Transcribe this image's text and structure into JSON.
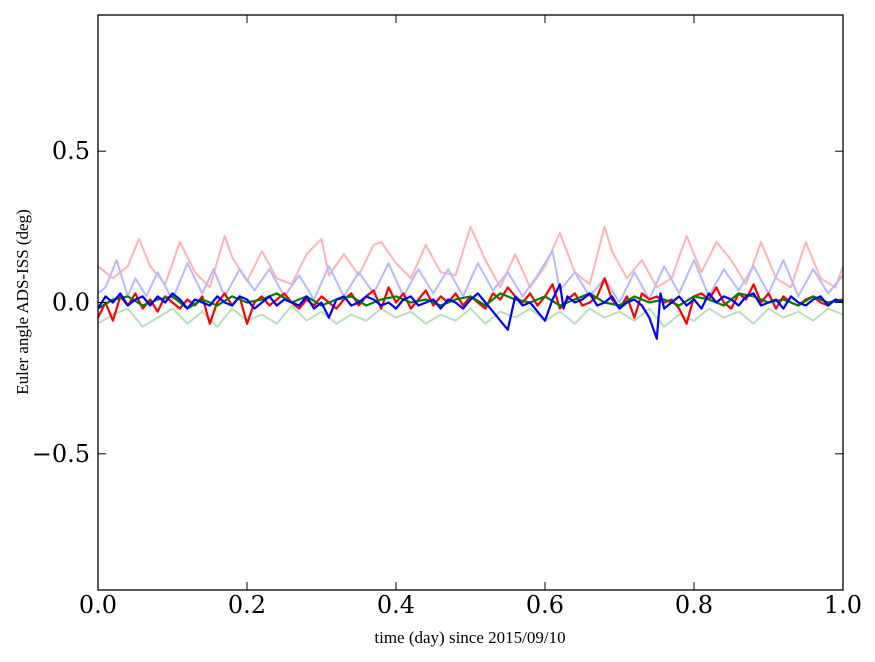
{
  "chart_data": {
    "type": "line",
    "title": "",
    "xlabel": "time (day) since 2015/09/10",
    "ylabel": "Euler angle ADS-ISS (deg)",
    "xlim": [
      0.0,
      1.0
    ],
    "ylim": [
      -0.95,
      0.95
    ],
    "xticks": [
      0.0,
      0.2,
      0.4,
      0.6,
      0.8,
      1.0
    ],
    "xtick_labels": [
      "0.0",
      "0.2",
      "0.4",
      "0.6",
      "0.8",
      "1.0"
    ],
    "yticks": [
      -0.5,
      0.0,
      0.5
    ],
    "ytick_labels": [
      "−0.5",
      "0.0",
      "0.5"
    ],
    "grid": false,
    "legend": "none",
    "series": [
      {
        "color": "#ffb3b3",
        "x": [
          0.0,
          0.02,
          0.04,
          0.055,
          0.07,
          0.09,
          0.11,
          0.13,
          0.15,
          0.17,
          0.18,
          0.2,
          0.22,
          0.24,
          0.26,
          0.28,
          0.3,
          0.31,
          0.33,
          0.35,
          0.37,
          0.38,
          0.4,
          0.42,
          0.44,
          0.46,
          0.48,
          0.5,
          0.52,
          0.54,
          0.56,
          0.58,
          0.6,
          0.62,
          0.64,
          0.66,
          0.68,
          0.69,
          0.71,
          0.73,
          0.75,
          0.77,
          0.79,
          0.81,
          0.83,
          0.85,
          0.87,
          0.89,
          0.91,
          0.93,
          0.95,
          0.97,
          0.99,
          1.0
        ],
        "y": [
          0.12,
          0.08,
          0.12,
          0.21,
          0.12,
          0.06,
          0.2,
          0.1,
          0.05,
          0.22,
          0.15,
          0.07,
          0.17,
          0.08,
          0.06,
          0.16,
          0.21,
          0.09,
          0.16,
          0.09,
          0.19,
          0.2,
          0.13,
          0.08,
          0.19,
          0.1,
          0.09,
          0.25,
          0.14,
          0.05,
          0.16,
          0.05,
          0.12,
          0.23,
          0.1,
          0.06,
          0.25,
          0.17,
          0.08,
          0.14,
          0.05,
          0.08,
          0.22,
          0.1,
          0.2,
          0.14,
          0.06,
          0.2,
          0.08,
          0.05,
          0.2,
          0.08,
          0.05,
          0.12
        ]
      },
      {
        "color": "#b8b8ff",
        "x": [
          0.0,
          0.01,
          0.025,
          0.04,
          0.05,
          0.065,
          0.08,
          0.1,
          0.12,
          0.14,
          0.155,
          0.17,
          0.19,
          0.21,
          0.23,
          0.25,
          0.27,
          0.29,
          0.31,
          0.33,
          0.35,
          0.37,
          0.39,
          0.41,
          0.43,
          0.45,
          0.47,
          0.49,
          0.51,
          0.53,
          0.55,
          0.57,
          0.59,
          0.61,
          0.62,
          0.64,
          0.66,
          0.68,
          0.7,
          0.72,
          0.74,
          0.76,
          0.78,
          0.8,
          0.82,
          0.84,
          0.86,
          0.88,
          0.9,
          0.92,
          0.94,
          0.96,
          0.98,
          1.0
        ],
        "y": [
          0.03,
          0.05,
          0.14,
          0.02,
          0.08,
          0.02,
          0.1,
          0.01,
          0.13,
          0.03,
          0.11,
          0.02,
          0.11,
          0.04,
          0.11,
          0.02,
          0.09,
          0.01,
          0.12,
          0.02,
          0.1,
          0.03,
          0.13,
          0.02,
          0.11,
          0.03,
          0.11,
          0.02,
          0.13,
          0.04,
          0.1,
          0.02,
          0.09,
          0.17,
          0.04,
          0.1,
          0.02,
          0.08,
          0.0,
          0.1,
          0.01,
          0.12,
          0.03,
          0.14,
          0.02,
          0.11,
          0.04,
          0.12,
          0.03,
          0.14,
          0.02,
          0.11,
          0.03,
          0.09
        ]
      },
      {
        "color": "#b8e0b8",
        "x": [
          0.0,
          0.02,
          0.04,
          0.06,
          0.08,
          0.1,
          0.12,
          0.14,
          0.16,
          0.18,
          0.2,
          0.22,
          0.24,
          0.26,
          0.28,
          0.3,
          0.32,
          0.34,
          0.36,
          0.38,
          0.4,
          0.42,
          0.44,
          0.46,
          0.48,
          0.5,
          0.52,
          0.54,
          0.56,
          0.58,
          0.6,
          0.62,
          0.64,
          0.66,
          0.68,
          0.7,
          0.72,
          0.74,
          0.76,
          0.78,
          0.8,
          0.82,
          0.84,
          0.86,
          0.88,
          0.9,
          0.92,
          0.94,
          0.96,
          0.98,
          1.0
        ],
        "y": [
          -0.07,
          -0.04,
          -0.02,
          -0.08,
          -0.05,
          -0.02,
          -0.07,
          -0.03,
          -0.08,
          -0.02,
          -0.06,
          -0.04,
          -0.07,
          -0.01,
          -0.06,
          -0.03,
          -0.07,
          -0.04,
          -0.06,
          -0.02,
          -0.05,
          -0.03,
          -0.07,
          -0.04,
          -0.06,
          -0.02,
          -0.07,
          -0.03,
          -0.05,
          -0.02,
          -0.06,
          -0.03,
          -0.07,
          -0.02,
          -0.05,
          -0.03,
          -0.06,
          -0.02,
          -0.08,
          -0.04,
          -0.06,
          -0.02,
          -0.05,
          -0.03,
          -0.07,
          -0.02,
          -0.05,
          -0.03,
          -0.06,
          -0.02,
          -0.04
        ]
      },
      {
        "color": "#ff0000",
        "x": [
          0.0,
          0.01,
          0.02,
          0.03,
          0.04,
          0.05,
          0.06,
          0.07,
          0.08,
          0.09,
          0.1,
          0.11,
          0.12,
          0.13,
          0.14,
          0.15,
          0.16,
          0.17,
          0.18,
          0.19,
          0.2,
          0.21,
          0.22,
          0.23,
          0.24,
          0.25,
          0.26,
          0.27,
          0.28,
          0.29,
          0.3,
          0.31,
          0.32,
          0.33,
          0.34,
          0.35,
          0.36,
          0.37,
          0.38,
          0.39,
          0.4,
          0.41,
          0.42,
          0.43,
          0.44,
          0.45,
          0.46,
          0.47,
          0.48,
          0.49,
          0.5,
          0.51,
          0.52,
          0.53,
          0.54,
          0.55,
          0.56,
          0.57,
          0.58,
          0.59,
          0.6,
          0.61,
          0.62,
          0.63,
          0.64,
          0.65,
          0.66,
          0.67,
          0.68,
          0.69,
          0.7,
          0.71,
          0.72,
          0.73,
          0.74,
          0.75,
          0.76,
          0.77,
          0.78,
          0.79,
          0.8,
          0.81,
          0.82,
          0.83,
          0.84,
          0.85,
          0.86,
          0.87,
          0.88,
          0.89,
          0.9,
          0.91,
          0.92,
          0.93,
          0.94,
          0.95,
          0.96,
          0.97,
          0.98,
          0.99,
          1.0
        ],
        "y": [
          -0.05,
          0.0,
          -0.06,
          0.02,
          -0.01,
          0.03,
          -0.02,
          0.01,
          -0.03,
          0.02,
          0.0,
          -0.02,
          0.01,
          -0.01,
          0.02,
          -0.07,
          0.0,
          0.03,
          -0.01,
          0.02,
          -0.07,
          0.0,
          0.02,
          -0.01,
          0.01,
          0.03,
          0.0,
          -0.02,
          0.01,
          -0.01,
          0.02,
          0.0,
          -0.02,
          0.01,
          0.03,
          -0.01,
          0.02,
          0.04,
          -0.02,
          0.05,
          0.0,
          0.03,
          -0.02,
          0.01,
          0.04,
          -0.01,
          0.02,
          0.0,
          0.03,
          -0.01,
          0.02,
          0.0,
          -0.02,
          0.03,
          0.01,
          0.05,
          0.02,
          0.0,
          0.03,
          -0.01,
          0.02,
          0.06,
          -0.02,
          0.01,
          0.03,
          -0.01,
          0.0,
          0.02,
          0.08,
          0.01,
          -0.02,
          0.02,
          -0.05,
          0.03,
          0.01,
          0.02,
          0.0,
          0.01,
          -0.02,
          -0.07,
          0.02,
          0.03,
          0.01,
          0.05,
          0.0,
          -0.02,
          0.03,
          0.01,
          0.06,
          0.0,
          0.03,
          -0.02,
          0.02,
          0.0,
          -0.01,
          0.01,
          0.02,
          0.0,
          -0.01,
          0.01,
          0.0
        ]
      },
      {
        "color": "#008000",
        "x": [
          0.0,
          0.02,
          0.04,
          0.06,
          0.08,
          0.1,
          0.12,
          0.14,
          0.16,
          0.18,
          0.2,
          0.22,
          0.24,
          0.26,
          0.28,
          0.3,
          0.32,
          0.34,
          0.36,
          0.38,
          0.4,
          0.42,
          0.44,
          0.46,
          0.48,
          0.5,
          0.52,
          0.54,
          0.56,
          0.58,
          0.6,
          0.62,
          0.64,
          0.66,
          0.68,
          0.7,
          0.72,
          0.74,
          0.76,
          0.78,
          0.8,
          0.82,
          0.84,
          0.86,
          0.88,
          0.9,
          0.92,
          0.94,
          0.96,
          0.98,
          1.0
        ],
        "y": [
          -0.02,
          0.01,
          0.02,
          -0.01,
          0.01,
          0.02,
          -0.02,
          0.01,
          -0.01,
          0.02,
          0.0,
          0.01,
          0.03,
          0.0,
          0.02,
          -0.01,
          0.01,
          0.02,
          -0.01,
          0.01,
          0.02,
          0.0,
          0.01,
          -0.01,
          0.01,
          0.02,
          -0.01,
          0.03,
          0.01,
          0.0,
          0.02,
          -0.01,
          0.01,
          0.03,
          0.0,
          -0.01,
          0.02,
          0.0,
          0.01,
          -0.01,
          0.02,
          0.01,
          -0.01,
          0.03,
          0.02,
          0.0,
          0.01,
          -0.01,
          0.02,
          0.0,
          0.01
        ]
      },
      {
        "color": "#0000ff",
        "x": [
          0.0,
          0.01,
          0.02,
          0.03,
          0.04,
          0.05,
          0.06,
          0.07,
          0.08,
          0.09,
          0.1,
          0.11,
          0.12,
          0.13,
          0.14,
          0.15,
          0.16,
          0.17,
          0.18,
          0.19,
          0.2,
          0.21,
          0.22,
          0.23,
          0.24,
          0.25,
          0.26,
          0.27,
          0.28,
          0.29,
          0.3,
          0.31,
          0.32,
          0.33,
          0.34,
          0.35,
          0.36,
          0.37,
          0.38,
          0.39,
          0.4,
          0.41,
          0.42,
          0.43,
          0.44,
          0.45,
          0.46,
          0.47,
          0.48,
          0.49,
          0.5,
          0.51,
          0.52,
          0.53,
          0.54,
          0.55,
          0.56,
          0.57,
          0.58,
          0.59,
          0.6,
          0.61,
          0.62,
          0.625,
          0.63,
          0.64,
          0.65,
          0.66,
          0.67,
          0.68,
          0.69,
          0.7,
          0.71,
          0.72,
          0.73,
          0.74,
          0.75,
          0.755,
          0.76,
          0.77,
          0.78,
          0.79,
          0.8,
          0.81,
          0.82,
          0.83,
          0.84,
          0.85,
          0.86,
          0.87,
          0.88,
          0.89,
          0.9,
          0.91,
          0.92,
          0.93,
          0.94,
          0.95,
          0.96,
          0.97,
          0.98,
          0.99,
          1.0
        ],
        "y": [
          -0.02,
          0.02,
          0.0,
          0.03,
          -0.01,
          0.01,
          0.02,
          -0.01,
          0.02,
          0.0,
          0.03,
          0.01,
          -0.02,
          0.01,
          0.0,
          -0.01,
          0.02,
          0.0,
          -0.01,
          0.02,
          0.01,
          -0.02,
          0.0,
          0.02,
          -0.01,
          0.01,
          0.0,
          -0.01,
          0.02,
          -0.02,
          0.0,
          -0.05,
          0.01,
          0.02,
          -0.01,
          0.0,
          0.02,
          0.01,
          -0.01,
          0.0,
          -0.02,
          0.01,
          0.02,
          -0.01,
          0.0,
          0.01,
          -0.02,
          0.01,
          0.0,
          -0.02,
          0.01,
          0.03,
          0.0,
          -0.03,
          -0.06,
          -0.09,
          0.02,
          -0.01,
          0.0,
          -0.03,
          -0.06,
          0.01,
          0.06,
          -0.02,
          0.02,
          0.0,
          0.01,
          0.03,
          -0.01,
          0.0,
          0.02,
          -0.02,
          0.0,
          0.01,
          -0.01,
          -0.05,
          -0.12,
          0.03,
          -0.02,
          0.0,
          0.02,
          -0.01,
          0.01,
          -0.02,
          0.03,
          0.0,
          0.02,
          0.01,
          -0.01,
          0.02,
          0.03,
          -0.01,
          0.0,
          0.01,
          -0.02,
          0.02,
          0.0,
          -0.01,
          0.01,
          0.02,
          -0.01,
          0.01,
          0.0
        ]
      }
    ]
  }
}
